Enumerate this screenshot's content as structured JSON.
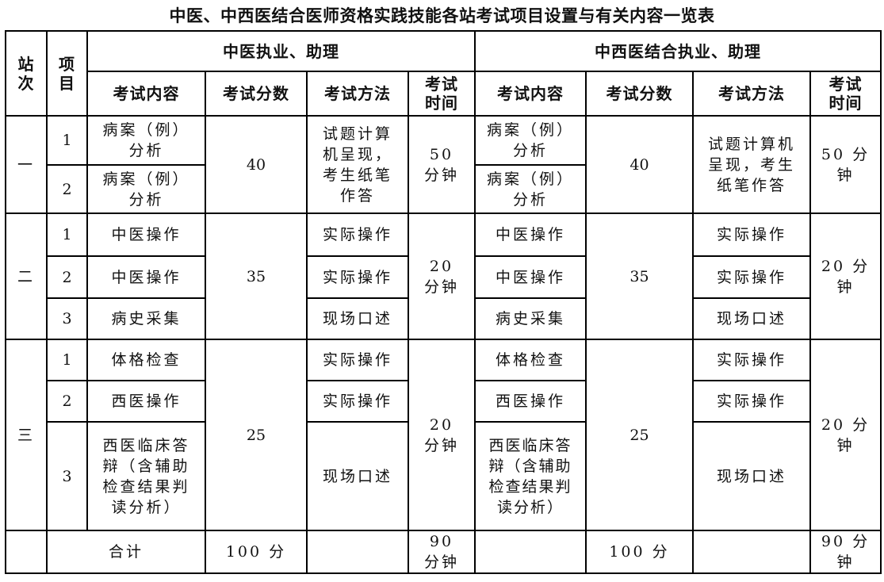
{
  "title": "中医、中西医结合医师资格实践技能各站考试项目设置与有关内容一览表",
  "header": {
    "station": "站次",
    "item": "项目",
    "group_tcm": "中医执业、助理",
    "group_integrated": "中西医结合执业、助理",
    "content": "考试内容",
    "score": "考试分数",
    "method": "考试方法",
    "time": "考试时间"
  },
  "stations": [
    {
      "name": "一",
      "tcm_score": "40",
      "tcm_time": "50 分钟",
      "int_score": "40",
      "int_time": "50 分钟",
      "tcm_method_merged": "试题计算机呈现，考生纸笔作答",
      "int_method_merged": "试题计算机呈现，考生纸笔作答",
      "items": [
        {
          "no": "1",
          "tcm_content": "病案（例）分析",
          "int_content": "病案（例）分析"
        },
        {
          "no": "2",
          "tcm_content": "病案（例）分析",
          "int_content": "病案（例）分析"
        }
      ]
    },
    {
      "name": "二",
      "tcm_score": "35",
      "tcm_time": "20 分钟",
      "int_score": "35",
      "int_time": "20 分钟",
      "items": [
        {
          "no": "1",
          "tcm_content": "中医操作",
          "tcm_method": "实际操作",
          "int_content": "中医操作",
          "int_method": "实际操作"
        },
        {
          "no": "2",
          "tcm_content": "中医操作",
          "tcm_method": "实际操作",
          "int_content": "中医操作",
          "int_method": "实际操作"
        },
        {
          "no": "3",
          "tcm_content": "病史采集",
          "tcm_method": "现场口述",
          "int_content": "病史采集",
          "int_method": "现场口述"
        }
      ]
    },
    {
      "name": "三",
      "tcm_score": "25",
      "tcm_time": "20 分钟",
      "int_score": "25",
      "int_time": "20 分钟",
      "items": [
        {
          "no": "1",
          "tcm_content": "体格检查",
          "tcm_method": "实际操作",
          "int_content": "体格检查",
          "int_method": "实际操作"
        },
        {
          "no": "2",
          "tcm_content": "西医操作",
          "tcm_method": "实际操作",
          "int_content": "西医操作",
          "int_method": "实际操作"
        },
        {
          "no": "3",
          "tcm_content": "西医临床答辩（含辅助检查结果判读分析）",
          "tcm_method": "现场口述",
          "int_content": "西医临床答辩（含辅助检查结果判读分析）",
          "int_method": "现场口述"
        }
      ]
    }
  ],
  "total": {
    "label": "合计",
    "tcm_score": "100 分",
    "tcm_time": "90 分钟",
    "int_score": "100 分",
    "int_time": "90 分钟"
  }
}
